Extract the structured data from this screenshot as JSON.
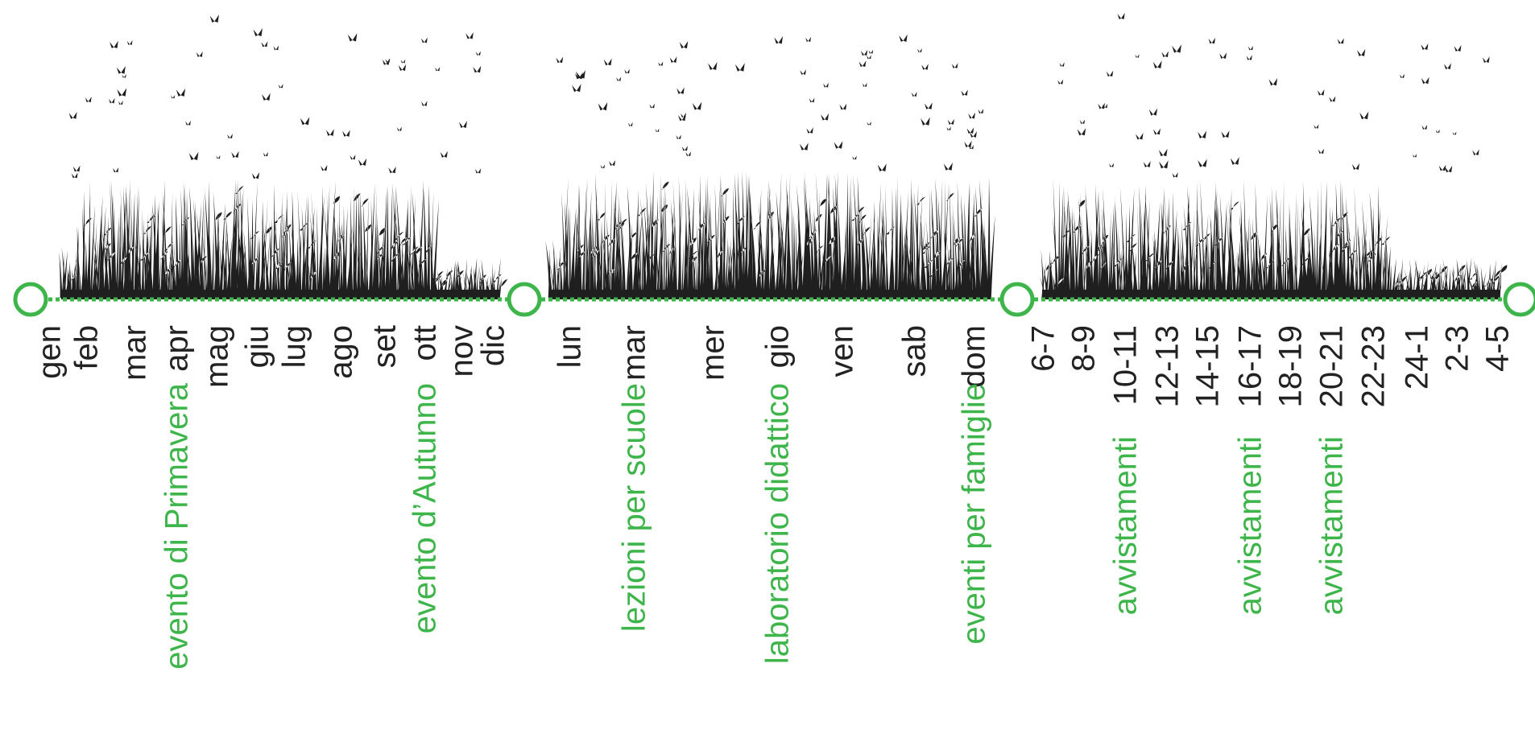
{
  "colors": {
    "accent_green": "#3db54a",
    "ink": "#222222",
    "grass": "#1f1f1f"
  },
  "sections": [
    {
      "id": "months",
      "ticks": [
        "gen",
        "feb",
        "mar",
        "apr",
        "mag",
        "giu",
        "lug",
        "ago",
        "set",
        "ott",
        "nov",
        "dic"
      ],
      "events": [
        {
          "label": "evento di Primavera",
          "at": "apr"
        },
        {
          "label": "evento d’Autunno",
          "at": "ott"
        }
      ]
    },
    {
      "id": "weekdays",
      "ticks": [
        "lun",
        "mar",
        "mer",
        "gio",
        "ven",
        "sab",
        "dom"
      ],
      "events": [
        {
          "label": "lezioni per scuole",
          "at": "mar"
        },
        {
          "label": "laboratorio didattico",
          "at": "gio"
        },
        {
          "label": "eventi per famiglie",
          "at": "dom"
        }
      ]
    },
    {
      "id": "hours",
      "ticks": [
        "6-7",
        "8-9",
        "10-11",
        "12-13",
        "14-15",
        "16-17",
        "18-19",
        "20-21",
        "22-23",
        "24-1",
        "2-3",
        "4-5"
      ],
      "events": [
        {
          "label": "avvistamenti",
          "at": "10-11"
        },
        {
          "label": "avvistamenti",
          "at": "16-17"
        },
        {
          "label": "avvistamenti",
          "at": "20-21"
        }
      ]
    }
  ]
}
